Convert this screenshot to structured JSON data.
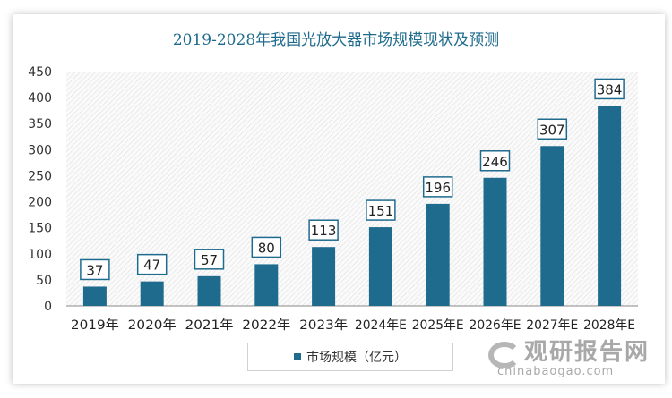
{
  "chart_data": {
    "type": "bar",
    "title": "2019-2028年我国光放大器市场规模现状及预测",
    "categories": [
      "2019年",
      "2020年",
      "2021年",
      "2022年",
      "2023年",
      "2024年E",
      "2025年E",
      "2026年E",
      "2027年E",
      "2028年E"
    ],
    "series": [
      {
        "name": "市场规模（亿元）",
        "values": [
          37,
          47,
          57,
          80,
          113,
          151,
          196,
          246,
          307,
          384
        ],
        "color": "#1f6b8e"
      }
    ],
    "ylim": [
      0,
      450
    ],
    "yticks": [
      0,
      50,
      100,
      150,
      200,
      250,
      300,
      350,
      400,
      450
    ],
    "grid": false,
    "legend": "bottom",
    "xlabel": "",
    "ylabel": ""
  },
  "watermark": {
    "cn": "观研报告网",
    "en": "chinabaogao.com"
  }
}
